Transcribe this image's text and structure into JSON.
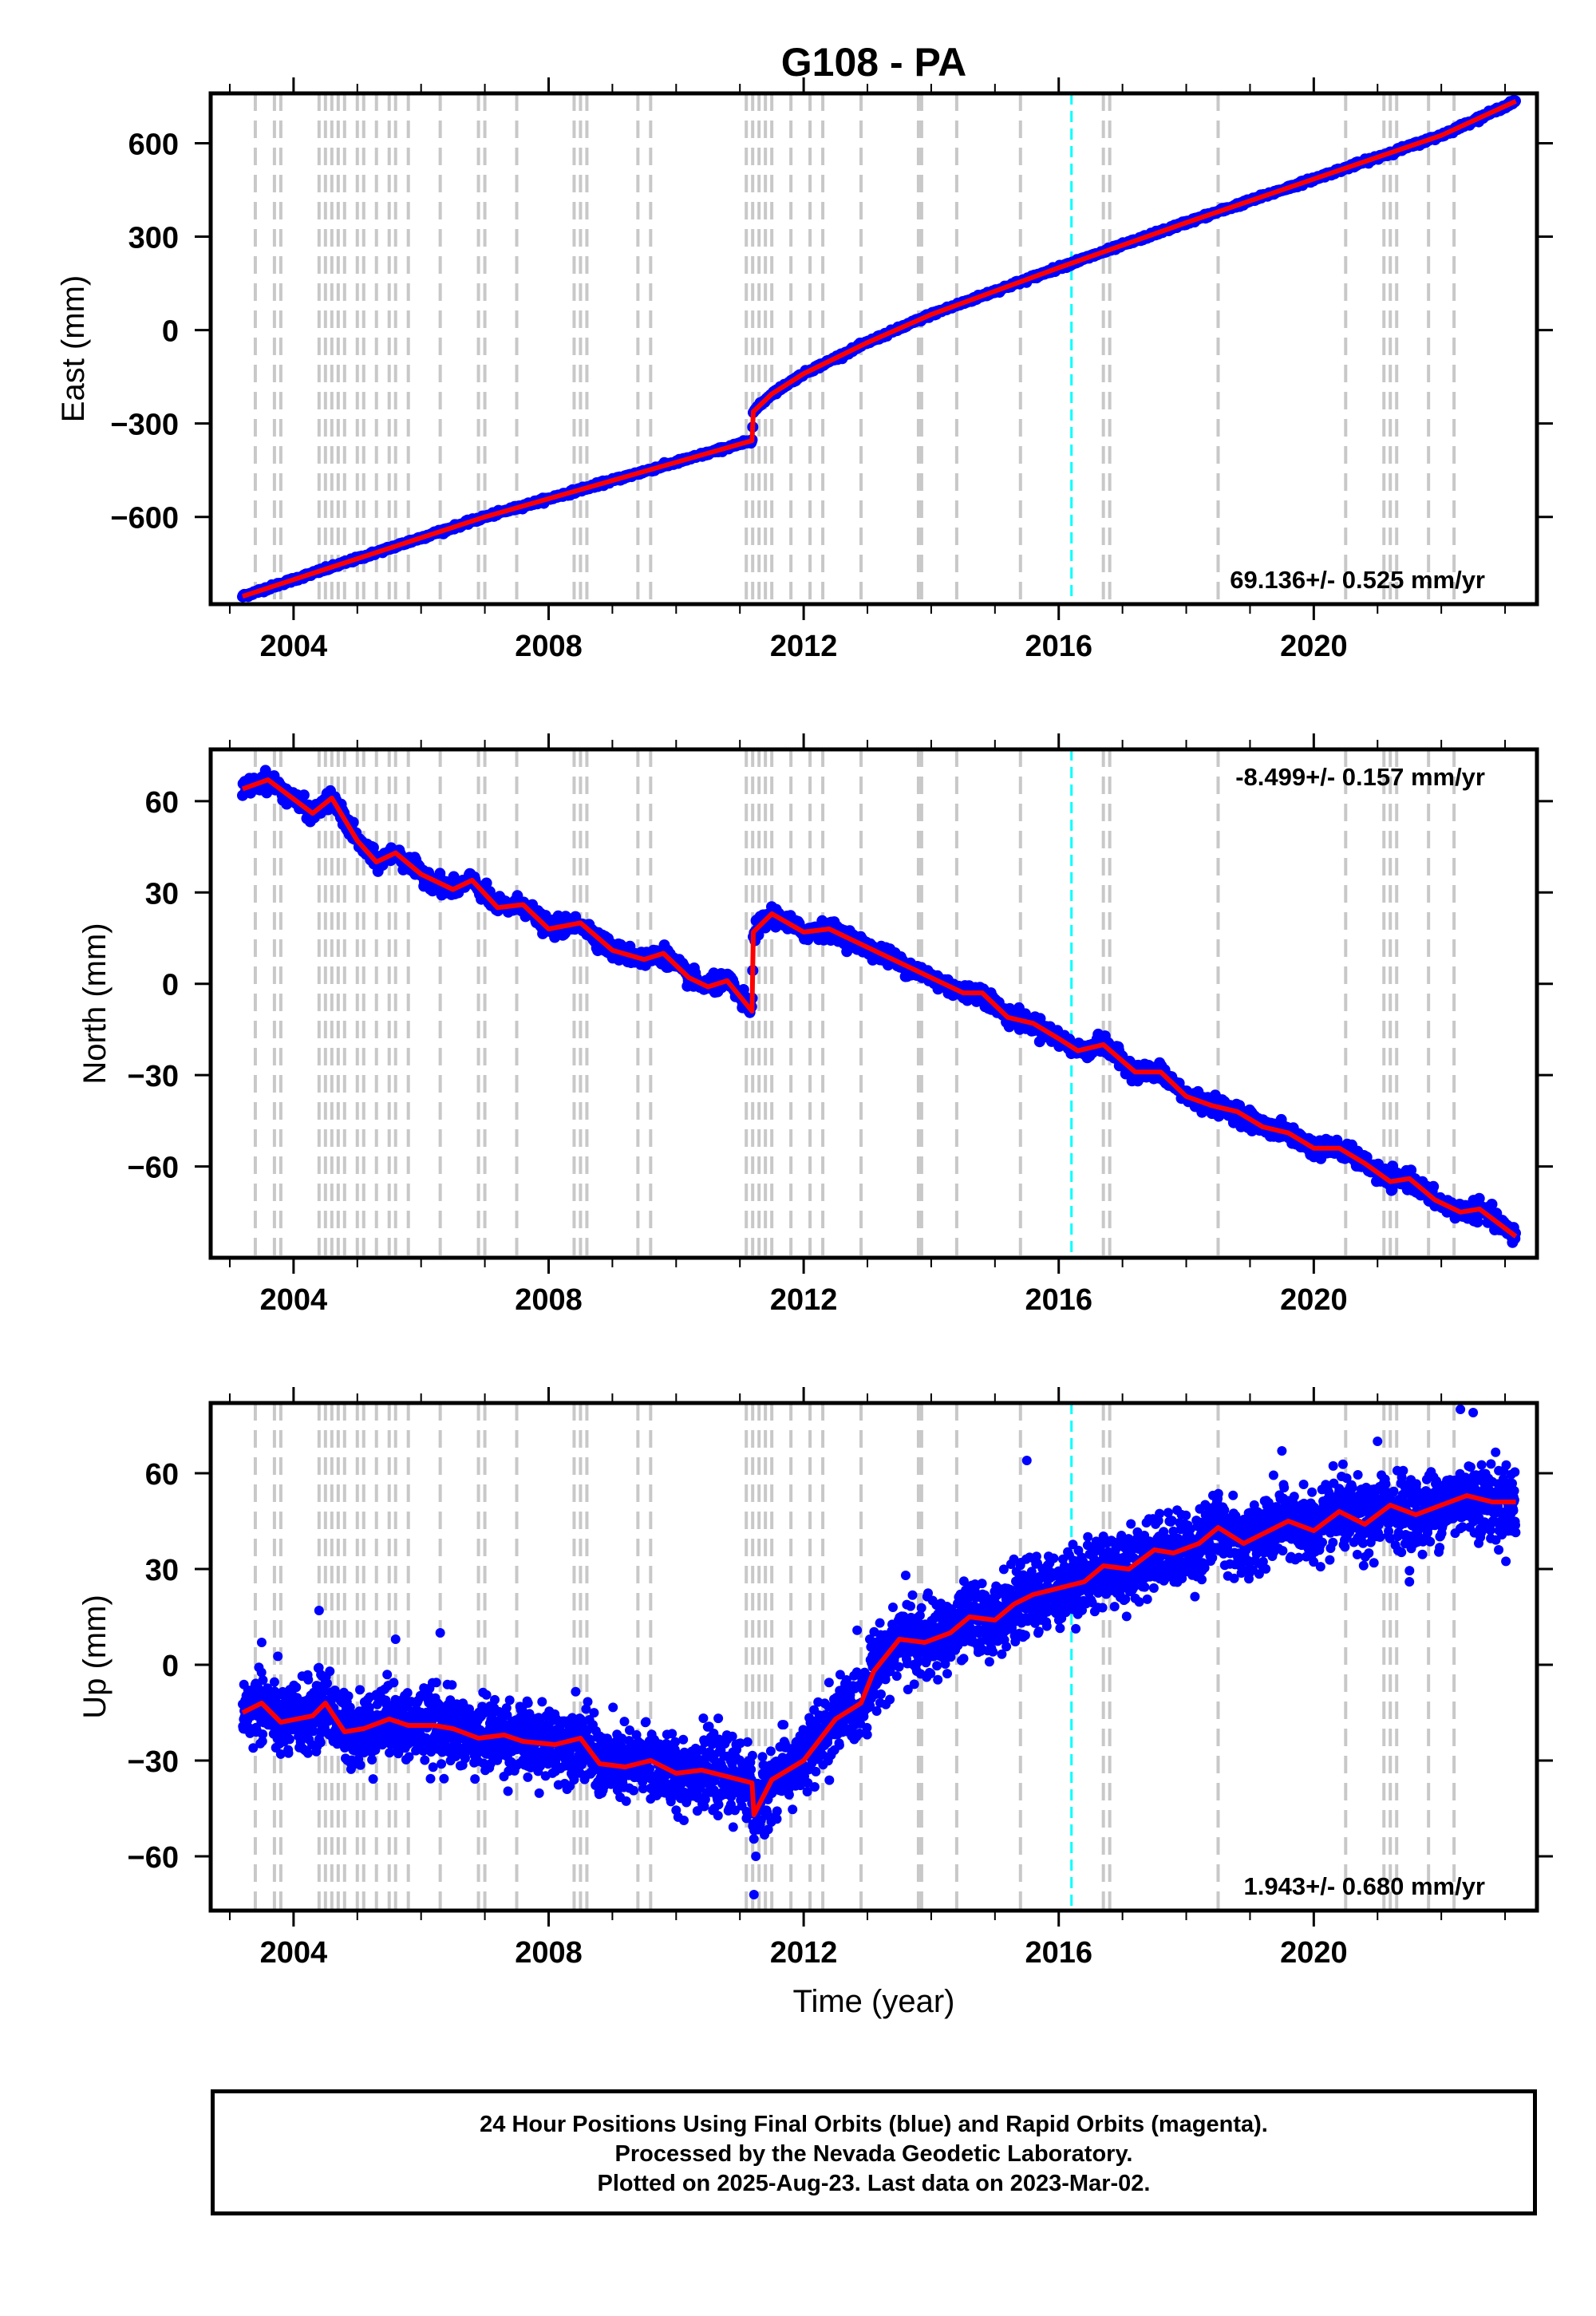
{
  "title": "G108 - PA",
  "colors": {
    "data_points": "#0000ff",
    "model_line": "#ff0000",
    "event_lines": "#c8c8c8",
    "antenna_change": "#00ffff",
    "frame": "#000000"
  },
  "footer": {
    "line1": "24 Hour Positions Using Final Orbits (blue) and Rapid Orbits (magenta).",
    "line2": "Processed by the Nevada Geodetic Laboratory.",
    "line3": "Plotted on 2025-Aug-23. Last data on 2023-Mar-02."
  },
  "chart_data": [
    {
      "type": "scatter",
      "name": "east",
      "ylabel": "East (mm)",
      "xlabel": "",
      "xlim": [
        2002.7,
        2023.5
      ],
      "ylim": [
        -880,
        760
      ],
      "xticks": [
        2004,
        2008,
        2012,
        2016,
        2020
      ],
      "yticks": [
        -600,
        -300,
        0,
        300,
        600
      ],
      "rate_label": "69.136+/- 0.525 mm/yr",
      "rate_position": "bottom-right",
      "model": [
        [
          2003.2,
          -855
        ],
        [
          2007.0,
          -600
        ],
        [
          2011.19,
          -355
        ],
        [
          2011.21,
          -262
        ],
        [
          2011.5,
          -205
        ],
        [
          2012.0,
          -140
        ],
        [
          2013.0,
          -40
        ],
        [
          2014.0,
          50
        ],
        [
          2016.0,
          200
        ],
        [
          2018.0,
          345
        ],
        [
          2020.0,
          485
        ],
        [
          2022.0,
          625
        ],
        [
          2023.17,
          735
        ]
      ],
      "noise_mm": 3
    },
    {
      "type": "scatter",
      "name": "north",
      "ylabel": "North (mm)",
      "xlabel": "",
      "xlim": [
        2002.7,
        2023.5
      ],
      "ylim": [
        -90,
        77
      ],
      "xticks": [
        2004,
        2008,
        2012,
        2016,
        2020
      ],
      "yticks": [
        -60,
        -30,
        0,
        30,
        60
      ],
      "rate_label": "-8.499+/- 0.157 mm/yr",
      "rate_position": "top-right",
      "model": [
        [
          2003.2,
          64
        ],
        [
          2003.6,
          67
        ],
        [
          2004.3,
          56
        ],
        [
          2004.6,
          61
        ],
        [
          2005.0,
          47
        ],
        [
          2005.3,
          40
        ],
        [
          2005.6,
          43
        ],
        [
          2006.0,
          36
        ],
        [
          2006.5,
          31
        ],
        [
          2006.8,
          34
        ],
        [
          2007.2,
          25
        ],
        [
          2007.6,
          26
        ],
        [
          2008.0,
          18
        ],
        [
          2008.5,
          20
        ],
        [
          2009.0,
          11
        ],
        [
          2009.5,
          8
        ],
        [
          2009.8,
          10
        ],
        [
          2010.2,
          2
        ],
        [
          2010.5,
          -1
        ],
        [
          2010.8,
          1
        ],
        [
          2011.19,
          -9
        ],
        [
          2011.21,
          17
        ],
        [
          2011.5,
          23
        ],
        [
          2012.0,
          17
        ],
        [
          2012.4,
          18
        ],
        [
          2012.8,
          14
        ],
        [
          2013.3,
          9
        ],
        [
          2013.7,
          5
        ],
        [
          2014.0,
          2
        ],
        [
          2014.5,
          -3
        ],
        [
          2014.8,
          -3
        ],
        [
          2015.2,
          -11
        ],
        [
          2015.6,
          -13
        ],
        [
          2016.0,
          -18
        ],
        [
          2016.3,
          -22
        ],
        [
          2016.7,
          -20
        ],
        [
          2017.2,
          -29
        ],
        [
          2017.6,
          -29
        ],
        [
          2018.0,
          -37
        ],
        [
          2018.4,
          -40
        ],
        [
          2018.8,
          -42
        ],
        [
          2019.2,
          -47
        ],
        [
          2019.6,
          -49
        ],
        [
          2020.0,
          -54
        ],
        [
          2020.4,
          -54
        ],
        [
          2020.8,
          -59
        ],
        [
          2021.2,
          -65
        ],
        [
          2021.5,
          -64
        ],
        [
          2021.9,
          -71
        ],
        [
          2022.3,
          -75
        ],
        [
          2022.6,
          -74
        ],
        [
          2023.17,
          -83
        ]
      ],
      "noise_mm": 1.4
    },
    {
      "type": "scatter",
      "name": "up",
      "ylabel": "Up (mm)",
      "xlabel": "Time (year)",
      "xlim": [
        2002.7,
        2023.5
      ],
      "ylim": [
        -77,
        82
      ],
      "xticks": [
        2004,
        2008,
        2012,
        2016,
        2020
      ],
      "yticks": [
        -60,
        -30,
        0,
        30,
        60
      ],
      "rate_label": "1.943+/- 0.680 mm/yr",
      "rate_position": "bottom-right",
      "model": [
        [
          2003.2,
          -15
        ],
        [
          2003.5,
          -12
        ],
        [
          2003.8,
          -18
        ],
        [
          2004.3,
          -16
        ],
        [
          2004.5,
          -12
        ],
        [
          2004.8,
          -21
        ],
        [
          2005.1,
          -20
        ],
        [
          2005.5,
          -17
        ],
        [
          2005.8,
          -19
        ],
        [
          2006.2,
          -19
        ],
        [
          2006.5,
          -20
        ],
        [
          2006.9,
          -23
        ],
        [
          2007.3,
          -22
        ],
        [
          2007.6,
          -24
        ],
        [
          2008.1,
          -25
        ],
        [
          2008.5,
          -23
        ],
        [
          2008.8,
          -31
        ],
        [
          2009.2,
          -32
        ],
        [
          2009.6,
          -30
        ],
        [
          2010.0,
          -34
        ],
        [
          2010.4,
          -33
        ],
        [
          2010.8,
          -35
        ],
        [
          2011.19,
          -37
        ],
        [
          2011.22,
          -47
        ],
        [
          2011.5,
          -36
        ],
        [
          2012.0,
          -30
        ],
        [
          2012.5,
          -17
        ],
        [
          2012.9,
          -12
        ],
        [
          2013.1,
          -2
        ],
        [
          2013.5,
          8
        ],
        [
          2013.9,
          7
        ],
        [
          2014.3,
          10
        ],
        [
          2014.6,
          15
        ],
        [
          2015.0,
          14
        ],
        [
          2015.3,
          19
        ],
        [
          2015.6,
          22
        ],
        [
          2016.0,
          24
        ],
        [
          2016.4,
          26
        ],
        [
          2016.7,
          31
        ],
        [
          2017.1,
          30
        ],
        [
          2017.5,
          36
        ],
        [
          2017.8,
          35
        ],
        [
          2018.2,
          38
        ],
        [
          2018.5,
          43
        ],
        [
          2018.9,
          38
        ],
        [
          2019.3,
          42
        ],
        [
          2019.6,
          45
        ],
        [
          2020.0,
          42
        ],
        [
          2020.4,
          48
        ],
        [
          2020.8,
          44
        ],
        [
          2021.2,
          50
        ],
        [
          2021.6,
          47
        ],
        [
          2022.0,
          50
        ],
        [
          2022.4,
          53
        ],
        [
          2022.8,
          51
        ],
        [
          2023.17,
          51
        ]
      ],
      "noise_mm": 5.5,
      "outliers": [
        [
          2003.5,
          7
        ],
        [
          2004.4,
          17
        ],
        [
          2005.6,
          8
        ],
        [
          2006.3,
          10
        ],
        [
          2008.4,
          -36
        ],
        [
          2009.6,
          -42
        ],
        [
          2010.6,
          -45
        ],
        [
          2011.22,
          -72
        ],
        [
          2011.25,
          -60
        ],
        [
          2013.4,
          18
        ],
        [
          2013.6,
          28
        ],
        [
          2015.5,
          64
        ],
        [
          2019.5,
          67
        ],
        [
          2021.0,
          70
        ],
        [
          2022.3,
          80
        ],
        [
          2022.5,
          79
        ],
        [
          2021.5,
          26
        ],
        [
          2022.9,
          36
        ]
      ]
    }
  ]
}
